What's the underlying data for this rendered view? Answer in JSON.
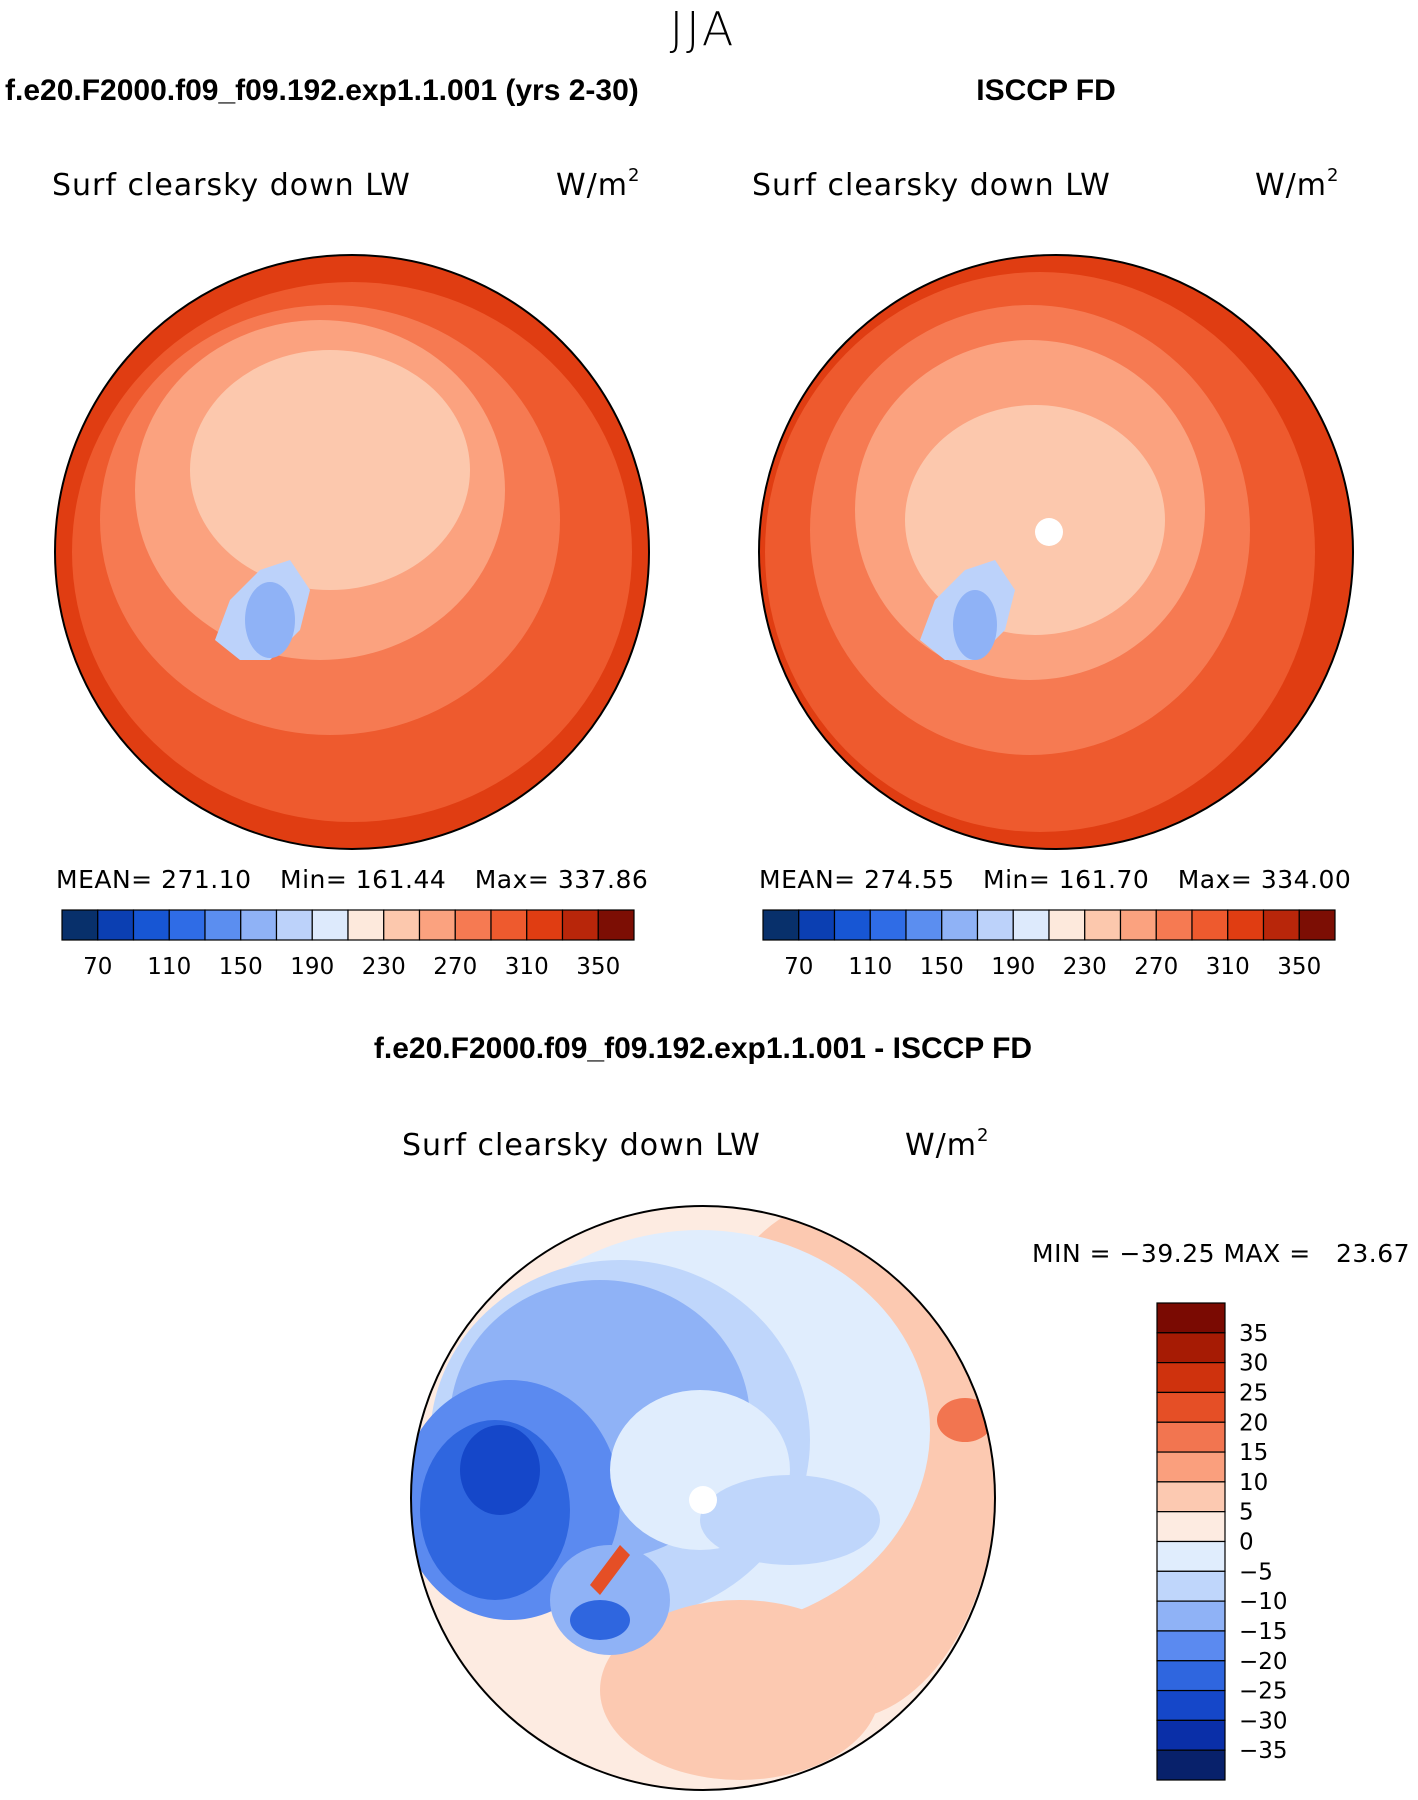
{
  "figure": {
    "season": "JJA",
    "diff_title": "f.e20.F2000.f09_f09.192.exp1.1.001 - ISCCP FD",
    "colors": {
      "abs": [
        "#08306b",
        "#0b3fb2",
        "#1756d4",
        "#2f6ce6",
        "#5b8ef0",
        "#8fb2f6",
        "#bcd2fa",
        "#ddeafc",
        "#fde9dc",
        "#fcc8ad",
        "#fba27f",
        "#f67a52",
        "#ee5a2e",
        "#e03d12",
        "#b8260a",
        "#7c0e04"
      ],
      "diff": [
        "#08216b",
        "#0a2fa8",
        "#1547c9",
        "#2f66df",
        "#5b8af0",
        "#8fb2f6",
        "#bfd6fb",
        "#e0edfd",
        "#fdebe1",
        "#fcc9b1",
        "#fa9f7d",
        "#f27550",
        "#e54f26",
        "#cf320d",
        "#a61b04",
        "#7a0a02"
      ]
    },
    "panels": [
      {
        "id": "model",
        "title": "f.e20.F2000.f09_f09.192.exp1.1.001 (yrs 2-30)",
        "field": "Surf clearsky down LW",
        "unit_base": "W/m",
        "unit_exp": "2",
        "mean_label": "MEAN=",
        "mean": "271.10",
        "min_label": "Min=",
        "min": "161.44",
        "max_label": "Max=",
        "max": "337.86",
        "colorbar_labels": [
          "70",
          "110",
          "150",
          "190",
          "230",
          "270",
          "310",
          "350"
        ]
      },
      {
        "id": "obs",
        "title": "ISCCP FD",
        "field": "Surf clearsky down LW",
        "unit_base": "W/m",
        "unit_exp": "2",
        "mean_label": "MEAN=",
        "mean": "274.55",
        "min_label": "Min=",
        "min": "161.70",
        "max_label": "Max=",
        "max": "334.00",
        "colorbar_labels": [
          "70",
          "110",
          "150",
          "190",
          "230",
          "270",
          "310",
          "350"
        ]
      },
      {
        "id": "diff",
        "field": "Surf clearsky down LW",
        "unit_base": "W/m",
        "unit_exp": "2",
        "minmax_text": "MIN = −39.25 MAX =   23.67",
        "colorbar_labels": [
          "35",
          "30",
          "25",
          "20",
          "15",
          "10",
          "5",
          "0",
          "−5",
          "−10",
          "−15",
          "−20",
          "−25",
          "−30",
          "−35"
        ]
      }
    ]
  }
}
